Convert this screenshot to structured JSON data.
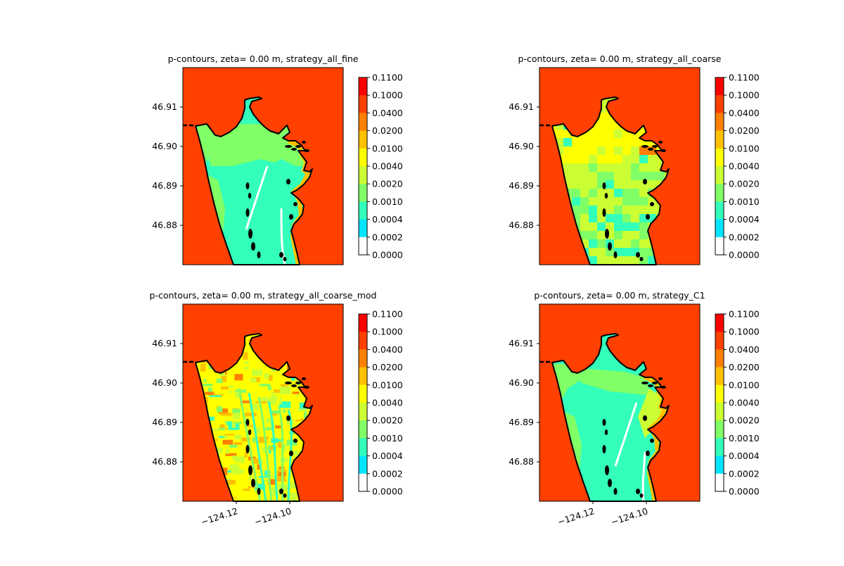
{
  "colors": {
    "background": "#ff4000",
    "coast": "#000000",
    "levels": [
      "#ffffff",
      "#00e5ff",
      "#33ffbb",
      "#80ff66",
      "#ccff33",
      "#ffff00",
      "#ffc000",
      "#ff8000",
      "#ff4000",
      "#ff0000"
    ]
  },
  "chart_data": [
    {
      "type": "heatmap",
      "title": "p-contours, zeta= 0.00 m, strategy_all_fine",
      "colorbar_ticks": [
        "0.1100",
        "0.1000",
        "0.0400",
        "0.0200",
        "0.0100",
        "0.0040",
        "0.0020",
        "0.0010",
        "0.0004",
        "0.0002",
        "0.0000"
      ],
      "yticks": [
        "46.91",
        "46.90",
        "46.89",
        "46.88"
      ],
      "xticks": [],
      "dominant_inland_level": 2,
      "pattern": "fine"
    },
    {
      "type": "heatmap",
      "title": "p-contours, zeta= 0.00 m, strategy_all_coarse",
      "colorbar_ticks": [
        "0.1100",
        "0.1000",
        "0.0400",
        "0.0200",
        "0.0100",
        "0.0040",
        "0.0020",
        "0.0010",
        "0.0004",
        "0.0002",
        "0.0000"
      ],
      "yticks": [
        "46.91",
        "46.90",
        "46.89",
        "46.88"
      ],
      "xticks": [],
      "dominant_inland_level": 4,
      "pattern": "coarse"
    },
    {
      "type": "heatmap",
      "title": "p-contours, zeta= 0.00 m, strategy_all_coarse_mod",
      "colorbar_ticks": [
        "0.1100",
        "0.1000",
        "0.0400",
        "0.0200",
        "0.0100",
        "0.0040",
        "0.0020",
        "0.0010",
        "0.0004",
        "0.0002",
        "0.0000"
      ],
      "yticks": [
        "46.91",
        "46.90",
        "46.89",
        "46.88"
      ],
      "xticks": [
        "−124.12",
        "−124.10"
      ],
      "dominant_inland_level": 5,
      "pattern": "mod"
    },
    {
      "type": "heatmap",
      "title": "p-contours, zeta= 0.00 m, strategy_C1",
      "colorbar_ticks": [
        "0.1100",
        "0.1000",
        "0.0400",
        "0.0200",
        "0.0100",
        "0.0040",
        "0.0020",
        "0.0010",
        "0.0004",
        "0.0002",
        "0.0000"
      ],
      "yticks": [
        "46.91",
        "46.90",
        "46.89",
        "46.88"
      ],
      "xticks": [
        "−124.12",
        "−124.10"
      ],
      "dominant_inland_level": 2,
      "pattern": "c1"
    }
  ]
}
